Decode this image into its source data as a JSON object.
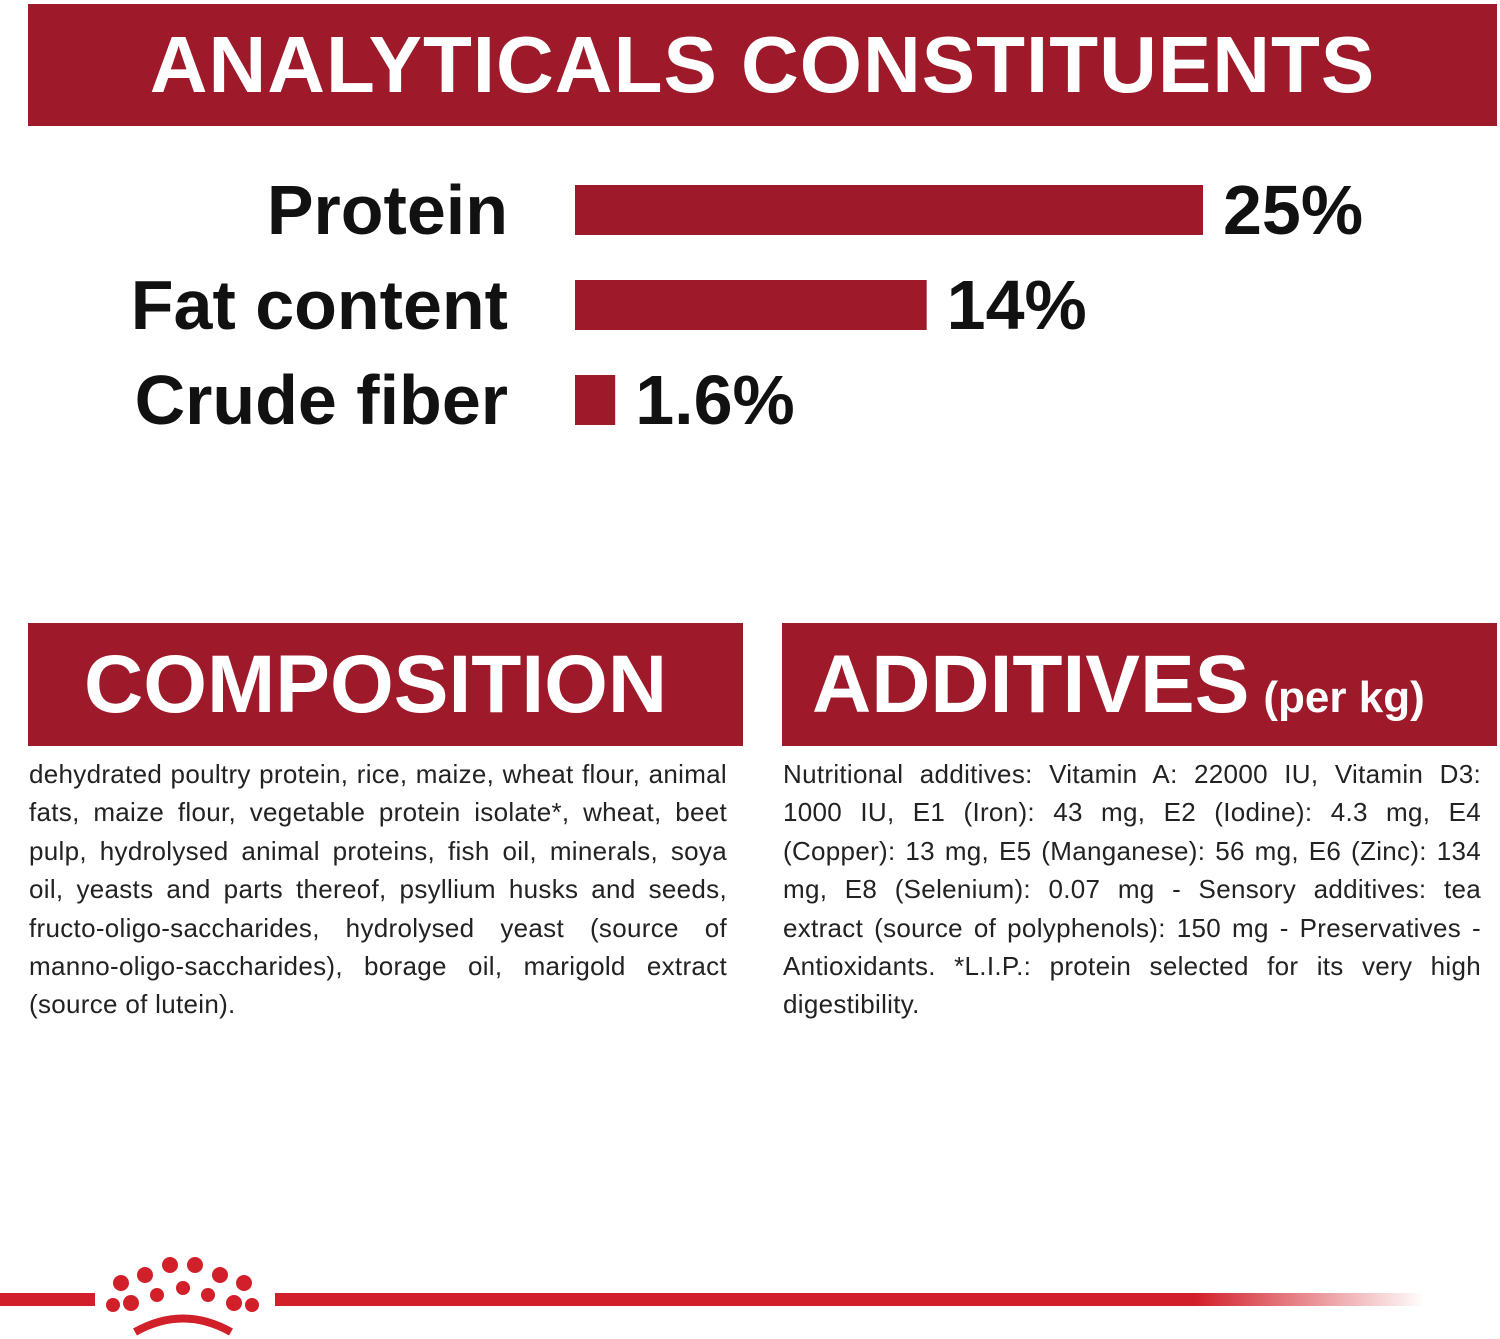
{
  "header": {
    "title": "ANALYTICALS CONSTITUENTS"
  },
  "chart_data": {
    "type": "bar",
    "orientation": "horizontal",
    "categories": [
      "Protein",
      "Fat content",
      "Crude fiber"
    ],
    "values": [
      25,
      14,
      1.6
    ],
    "value_labels": [
      "25%",
      "14%",
      "1.6%"
    ],
    "color": "#9e1a2a"
  },
  "composition": {
    "title": "COMPOSITION",
    "text": "dehydrated poultry protein, rice, maize, wheat flour, animal fats, maize flour, vegetable protein isolate*, wheat, beet pulp, hydrolysed animal proteins, fish oil, minerals, soya oil, yeasts and parts thereof, psyllium husks and seeds, fructo-oligo-saccharides, hydrolysed yeast (source of manno-oligo-saccharides), borage oil, marigold extract (source of lutein)."
  },
  "additives": {
    "title": "ADDITIVES",
    "subtitle": "(per kg)",
    "text": "Nutritional additives: Vitamin A: 22000 IU, Vitamin D3: 1000 IU, E1 (Iron): 43 mg, E2 (Iodine): 4.3 mg, E4 (Copper): 13 mg, E5 (Manganese): 56 mg, E6 (Zinc): 134 mg, E8 (Selenium): 0.07 mg - Sensory additives: tea extract (source of polyphenols): 150 mg - Preservatives - Antioxidants. *L.I.P.: protein selected for its very high digestibility."
  }
}
